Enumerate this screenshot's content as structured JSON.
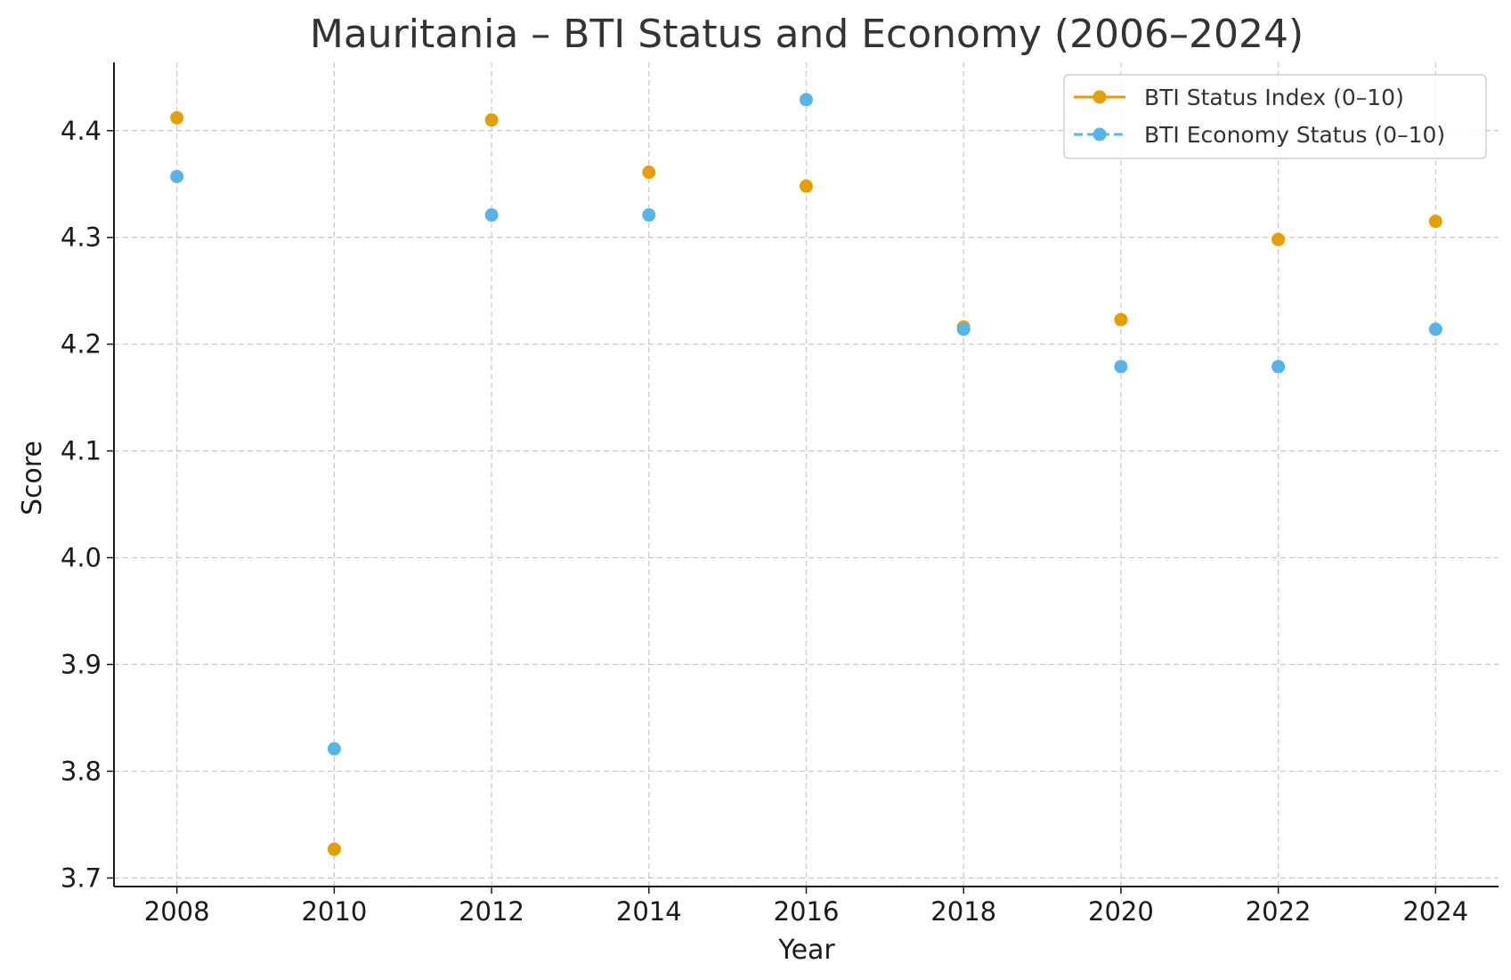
{
  "chart_data": {
    "type": "scatter",
    "title": "Mauritania – BTI Status and Economy (2006–2024)",
    "xlabel": "Year",
    "ylabel": "Score",
    "xlim": [
      2007.2,
      2024.8
    ],
    "ylim": [
      3.692,
      4.464
    ],
    "xticks": [
      "2008",
      "2010",
      "2012",
      "2014",
      "2016",
      "2018",
      "2020",
      "2022",
      "2024"
    ],
    "yticks": [
      "3.7",
      "3.8",
      "3.9",
      "4.0",
      "4.1",
      "4.2",
      "4.3",
      "4.4"
    ],
    "grid": true,
    "legend_position": "top-right",
    "series": [
      {
        "name": "BTI Status Index (0–10)",
        "color": "#E69F00",
        "line_style": "solid",
        "points": [
          {
            "x": 2008,
            "y": 4.412
          },
          {
            "x": 2010,
            "y": 3.727
          },
          {
            "x": 2012,
            "y": 4.41
          },
          {
            "x": 2014,
            "y": 4.361
          },
          {
            "x": 2016,
            "y": 4.348
          },
          {
            "x": 2018,
            "y": 4.216
          },
          {
            "x": 2020,
            "y": 4.223
          },
          {
            "x": 2022,
            "y": 4.298
          },
          {
            "x": 2024,
            "y": 4.315
          }
        ]
      },
      {
        "name": "BTI Economy Status (0–10)",
        "color": "#56B4E9",
        "line_style": "dashed",
        "points": [
          {
            "x": 2008,
            "y": 4.357
          },
          {
            "x": 2010,
            "y": 3.821
          },
          {
            "x": 2012,
            "y": 4.321
          },
          {
            "x": 2014,
            "y": 4.321
          },
          {
            "x": 2016,
            "y": 4.429
          },
          {
            "x": 2018,
            "y": 4.214
          },
          {
            "x": 2020,
            "y": 4.179
          },
          {
            "x": 2022,
            "y": 4.179
          },
          {
            "x": 2024,
            "y": 4.214
          }
        ]
      }
    ]
  }
}
